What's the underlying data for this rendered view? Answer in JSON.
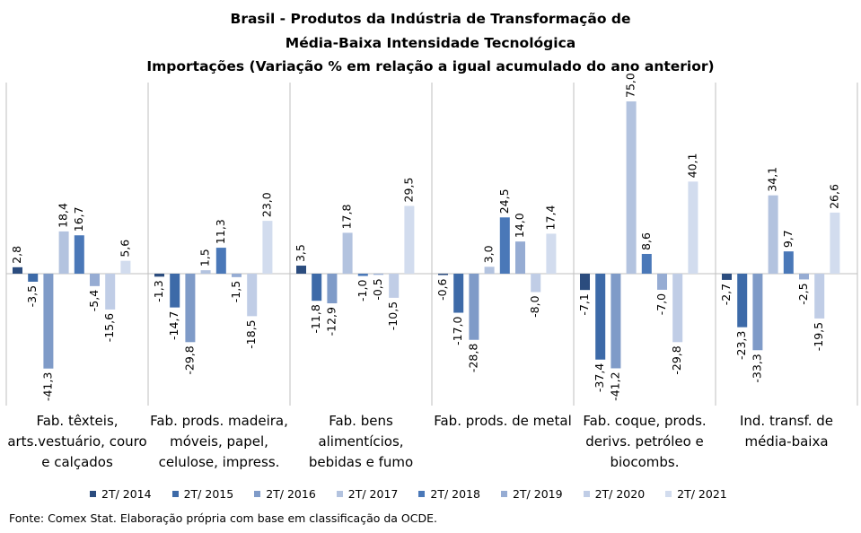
{
  "title_lines": [
    "Brasil - Produtos da Indústria de Transformação de",
    "Média-Baixa Intensidade Tecnológica",
    "Importações (Variação % em relação a igual acumulado do ano anterior)"
  ],
  "source": "Fonte: Comex Stat. Elaboração própria com base em classificação da OCDE.",
  "chart_data": {
    "type": "bar",
    "title": "Brasil - Produtos da Indústria de Transformação de Média-Baixa Intensidade Tecnológica — Importações (Variação % em relação a igual acumulado do ano anterior)",
    "categories": [
      [
        "Fab. têxteis,",
        "arts.vestuário, couro",
        "e calçados"
      ],
      [
        "Fab. prods. madeira,",
        "móveis, papel,",
        "celulose, impress."
      ],
      [
        "Fab. bens",
        "alimentícios,",
        "bebidas e fumo"
      ],
      [
        "Fab. prods. de metal"
      ],
      [
        "Fab. coque, prods.",
        "derivs. petróleo e",
        "biocombs."
      ],
      [
        "Ind. transf. de",
        "média-baixa"
      ]
    ],
    "series": [
      {
        "name": "2T/ 2014",
        "color": "#2b4c7e",
        "values": [
          2.8,
          -1.3,
          3.5,
          -0.6,
          -7.1,
          -2.7
        ]
      },
      {
        "name": "2T/ 2015",
        "color": "#3d6aa8",
        "values": [
          -3.5,
          -14.7,
          -11.8,
          -17.0,
          -37.4,
          -23.3
        ]
      },
      {
        "name": "2T/ 2016",
        "color": "#7f9bc8",
        "values": [
          -41.3,
          -29.8,
          -12.9,
          -28.8,
          -41.2,
          -33.3
        ]
      },
      {
        "name": "2T/ 2017",
        "color": "#b3c3df",
        "values": [
          18.4,
          1.5,
          17.8,
          3.0,
          75.0,
          34.1
        ]
      },
      {
        "name": "2T/ 2018",
        "color": "#4a78b8",
        "values": [
          16.7,
          11.3,
          -1.0,
          24.5,
          8.6,
          9.7
        ]
      },
      {
        "name": "2T/ 2019",
        "color": "#96acd3",
        "values": [
          -5.4,
          -1.5,
          -0.5,
          14.0,
          -7.0,
          -2.5
        ]
      },
      {
        "name": "2T/ 2020",
        "color": "#c0cde6",
        "values": [
          -15.6,
          -18.5,
          -10.5,
          -8.0,
          -29.8,
          -19.5
        ]
      },
      {
        "name": "2T/ 2021",
        "color": "#d2dcee",
        "values": [
          5.6,
          23.0,
          29.5,
          17.4,
          40.1,
          26.6
        ]
      }
    ],
    "labels": [
      [
        "2,8",
        "-1,3",
        "3,5",
        "-0,6",
        "-7,1",
        "-2,7"
      ],
      [
        "-3,5",
        "-14,7",
        "-11,8",
        "-17,0",
        "-37,4",
        "-23,3"
      ],
      [
        "-41,3",
        "-29,8",
        "-12,9",
        "-28,8",
        "-41,2",
        "-33,3"
      ],
      [
        "18,4",
        "1,5",
        "17,8",
        "3,0",
        "75,0",
        "34,1"
      ],
      [
        "16,7",
        "11,3",
        "-1,0",
        "24,5",
        "8,6",
        "9,7"
      ],
      [
        "-5,4",
        "-1,5",
        "-0,5",
        "14,0",
        "-7,0",
        "-2,5"
      ],
      [
        "-15,6",
        "-18,5",
        "-10,5",
        "-8,0",
        "-29,8",
        "-19,5"
      ],
      [
        "5,6",
        "23,0",
        "29,5",
        "17,4",
        "40,1",
        "26,6"
      ]
    ],
    "ylim": [
      -60,
      80
    ],
    "grid": false,
    "legend_position": "bottom"
  }
}
